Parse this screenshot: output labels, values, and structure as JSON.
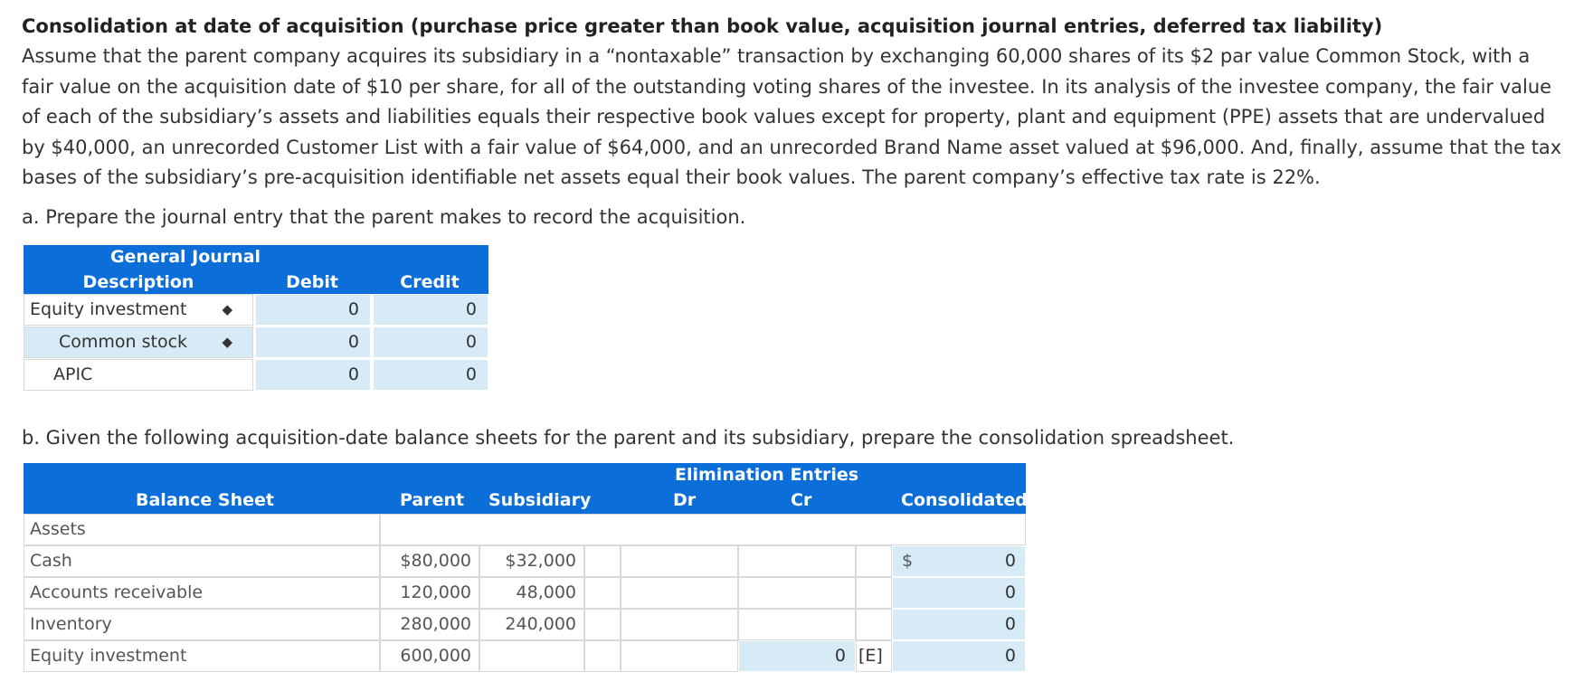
{
  "problem": {
    "title": "Consolidation at date of acquisition (purchase price greater than book value, acquisition journal entries, deferred tax liability)",
    "text": "Assume that the parent company acquires its subsidiary in a “nontaxable” transaction by exchanging 60,000 shares of its $2 par value Common Stock, with a fair value on the acquisition date of $10 per share, for all of the outstanding voting shares of the investee. In its analysis of the investee company, the fair value of each of the subsidiary’s assets and liabilities equals their respective book values except for property, plant and equipment (PPE) assets that are undervalued by $40,000, an unrecorded Customer List with a fair value of $64,000, and an unrecorded Brand Name asset valued at $96,000. And, finally, assume that the tax bases of the subsidiary’s pre-acquisition identifiable net assets equal their book values. The parent company’s effective tax rate is 22%."
  },
  "part_a": {
    "question": "a. Prepare the journal entry that the parent makes to record the acquisition.",
    "table_title": "General Journal",
    "headers": {
      "description": "Description",
      "debit": "Debit",
      "credit": "Credit"
    },
    "rows": [
      {
        "description": "Equity investment",
        "debit": "0",
        "credit": "0"
      },
      {
        "description": "Common stock",
        "debit": "0",
        "credit": "0"
      },
      {
        "description": "APIC",
        "debit": "0",
        "credit": "0"
      }
    ]
  },
  "part_b": {
    "question": "b. Given the following acquisition-date balance sheets for the parent and its subsidiary, prepare the consolidation spreadsheet.",
    "headers": {
      "balance_sheet": "Balance Sheet",
      "parent": "Parent",
      "subsidiary": "Subsidiary",
      "elimination": "Elimination Entries",
      "dr": "Dr",
      "cr": "Cr",
      "consolidated": "Consolidated"
    },
    "section_label": "Assets",
    "currency_symbol": "$",
    "rows": [
      {
        "label": "Cash",
        "parent": "$80,000",
        "subsidiary": "$32,000",
        "cr": "",
        "tag": "",
        "consolidated": "0"
      },
      {
        "label": "Accounts receivable",
        "parent": "120,000",
        "subsidiary": "48,000",
        "cr": "",
        "tag": "",
        "consolidated": "0"
      },
      {
        "label": "Inventory",
        "parent": "280,000",
        "subsidiary": "240,000",
        "cr": "",
        "tag": "",
        "consolidated": "0"
      },
      {
        "label": "Equity investment",
        "parent": "600,000",
        "subsidiary": "",
        "cr": "0",
        "tag": "[E]",
        "consolidated": "0"
      }
    ]
  }
}
